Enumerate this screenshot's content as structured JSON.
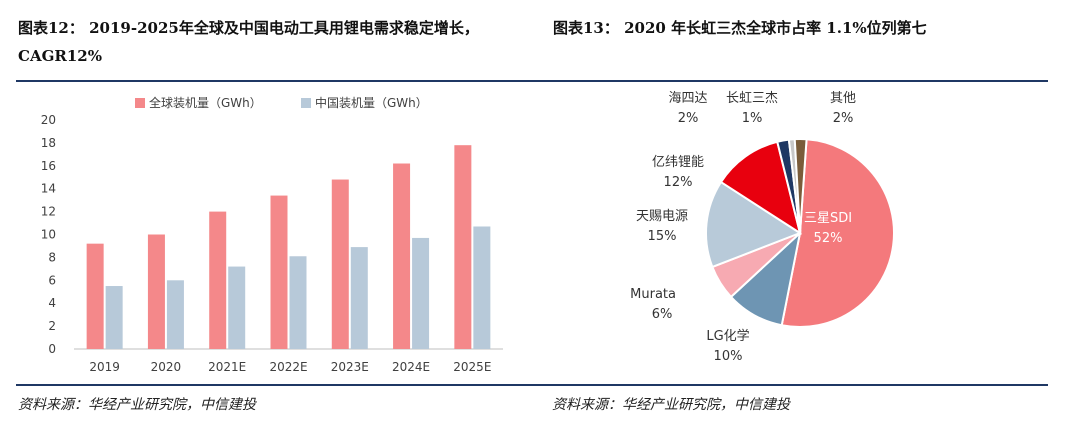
{
  "left_title": "图表12： 2019-2025年全球及中国电动工具用锂电需求稳定增长，CAGR12%",
  "right_title": "图表13： 2020 年长虹三杰全球市占率 1.1%位列第七",
  "left_source": "资料来源：华经产业研究院，中信建投",
  "right_source": "资料来源：华经产业研究院，中信建投",
  "colors": {
    "global": "#f4888a",
    "china": "#b7c9d9",
    "rule": "#1f3864"
  },
  "chart_data": [
    {
      "type": "bar",
      "categories": [
        "2019",
        "2020",
        "2021E",
        "2022E",
        "2023E",
        "2024E",
        "2025E"
      ],
      "series": [
        {
          "name": "全球装机量（GWh）",
          "values": [
            9.2,
            10.0,
            12.0,
            13.4,
            14.8,
            16.2,
            17.8
          ]
        },
        {
          "name": "中国装机量（GWh）",
          "values": [
            5.5,
            6.0,
            7.2,
            8.1,
            8.9,
            9.7,
            10.7
          ]
        }
      ],
      "ylim": [
        0,
        20
      ],
      "yticks": [
        0,
        2,
        4,
        6,
        8,
        10,
        12,
        14,
        16,
        18,
        20
      ],
      "grid": false,
      "legend": "top"
    },
    {
      "type": "pie",
      "slices": [
        {
          "label": "三星SDI",
          "pct_label": "52%",
          "value": 52,
          "color": "#f4797c"
        },
        {
          "label": "LG化学",
          "pct_label": "10%",
          "value": 10,
          "color": "#6e95b3"
        },
        {
          "label": "Murata",
          "pct_label": "6%",
          "value": 6,
          "color": "#f7aab2"
        },
        {
          "label": "天赐电源",
          "pct_label": "15%",
          "value": 15,
          "color": "#b8cad9"
        },
        {
          "label": "亿纬锂能",
          "pct_label": "12%",
          "value": 12,
          "color": "#e8000e"
        },
        {
          "label": "海四达",
          "pct_label": "2%",
          "value": 2,
          "color": "#1f3864"
        },
        {
          "label": "长虹三杰",
          "pct_label": "1%",
          "value": 1,
          "color": "#c8c8c8"
        },
        {
          "label": "其他",
          "pct_label": "2%",
          "value": 2,
          "color": "#7a5c3a"
        }
      ]
    }
  ]
}
